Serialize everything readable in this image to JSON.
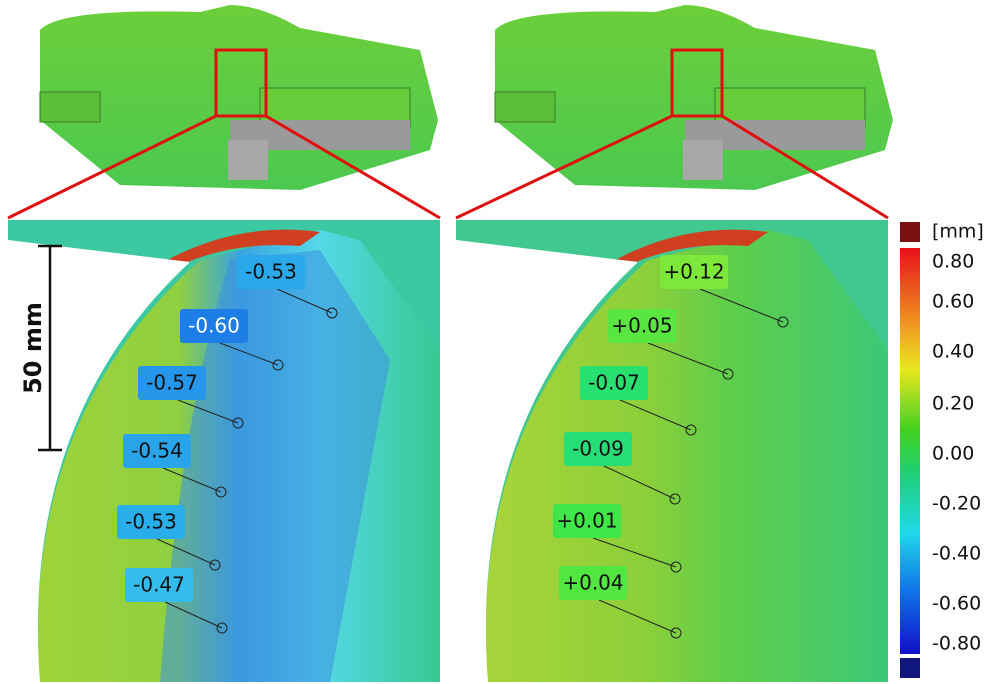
{
  "left_panel": {
    "labels": [
      "-0.53",
      "-0.60",
      "-0.57",
      "-0.54",
      "-0.53",
      "-0.47"
    ]
  },
  "right_panel": {
    "labels": [
      "+0.12",
      "+0.05",
      "-0.07",
      "-0.09",
      "+0.01",
      "+0.04"
    ]
  },
  "scale_bar": "50 mm",
  "color_scale": {
    "unit": "[mm]",
    "ticks": [
      "0.80",
      "0.60",
      "0.40",
      "0.20",
      "0.00",
      "-0.20",
      "-0.40",
      "-0.60",
      "-0.80"
    ]
  }
}
